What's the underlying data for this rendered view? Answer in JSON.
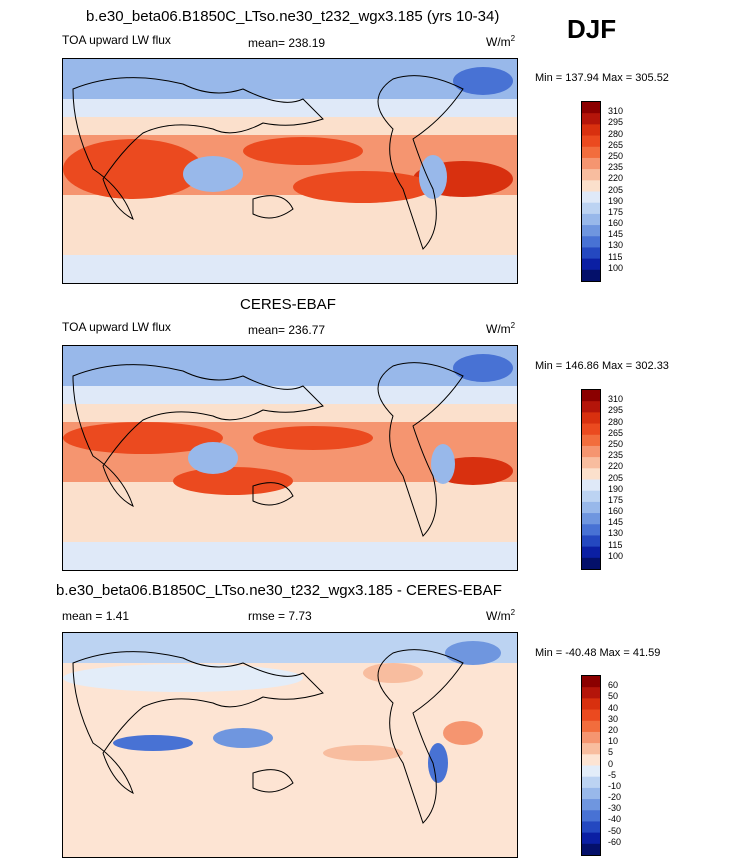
{
  "season": "DJF",
  "panels": [
    {
      "title": "b.e30_beta06.B1850C_LTso.ne30_t232_wgx3.185 (yrs 10-34)",
      "field": "TOA upward LW flux",
      "stat1": "mean= 238.19",
      "stat2": "",
      "units": "W/m",
      "units_sup": "2",
      "minmax": "Min = 137.94 Max = 305.52",
      "legend": [
        "310",
        "295",
        "280",
        "265",
        "250",
        "235",
        "220",
        "205",
        "190",
        "175",
        "160",
        "145",
        "130",
        "115",
        "100"
      ]
    },
    {
      "title": "CERES-EBAF",
      "field": "TOA upward LW flux",
      "stat1": "mean= 236.77",
      "stat2": "",
      "units": "W/m",
      "units_sup": "2",
      "minmax": "Min = 146.86 Max = 302.33",
      "legend": [
        "310",
        "295",
        "280",
        "265",
        "250",
        "235",
        "220",
        "205",
        "190",
        "175",
        "160",
        "145",
        "130",
        "115",
        "100"
      ]
    },
    {
      "title": "b.e30_beta06.B1850C_LTso.ne30_t232_wgx3.185 - CERES-EBAF",
      "field": "",
      "stat1": "mean =   1.41",
      "stat2": "rmse =   7.73",
      "units": "W/m",
      "units_sup": "2",
      "minmax": "Min = -40.48 Max =  41.59",
      "legend": [
        "60",
        "50",
        "40",
        "30",
        "20",
        "10",
        "5",
        "0",
        "-5",
        "-10",
        "-20",
        "-30",
        "-40",
        "-50",
        "-60"
      ]
    }
  ],
  "colors": {
    "abs_scale": [
      "#8b0000",
      "#b4150a",
      "#d8300f",
      "#eb4a1f",
      "#f26d3d",
      "#f59570",
      "#f8bd9f",
      "#fbe0cc",
      "#dfe9f8",
      "#bcd3f2",
      "#98b8ea",
      "#6f96df",
      "#4872d4",
      "#2448c0",
      "#0b1fa3",
      "#04106a"
    ],
    "diff_scale": [
      "#8b0000",
      "#b4150a",
      "#d8300f",
      "#eb4a1f",
      "#f26d3d",
      "#f59570",
      "#f8bd9f",
      "#fde4d3",
      "#e3edf9",
      "#bcd3f2",
      "#98b8ea",
      "#6f96df",
      "#4872d4",
      "#2448c0",
      "#0b1fa3",
      "#04106a"
    ]
  },
  "chart_data": [
    {
      "type": "heatmap",
      "title": "b.e30_beta06.B1850C_LTso.ne30_t232_wgx3.185 (yrs 10-34)",
      "field": "TOA upward LW flux",
      "units": "W/m2",
      "mean": 238.19,
      "min": 137.94,
      "max": 305.52,
      "levels": [
        100,
        115,
        130,
        145,
        160,
        175,
        190,
        205,
        220,
        235,
        250,
        265,
        280,
        295,
        310
      ]
    },
    {
      "type": "heatmap",
      "title": "CERES-EBAF",
      "field": "TOA upward LW flux",
      "units": "W/m2",
      "mean": 236.77,
      "min": 146.86,
      "max": 302.33,
      "levels": [
        100,
        115,
        130,
        145,
        160,
        175,
        190,
        205,
        220,
        235,
        250,
        265,
        280,
        295,
        310
      ]
    },
    {
      "type": "heatmap",
      "title": "b.e30_beta06.B1850C_LTso.ne30_t232_wgx3.185 - CERES-EBAF",
      "units": "W/m2",
      "mean": 1.41,
      "rmse": 7.73,
      "min": -40.48,
      "max": 41.59,
      "levels": [
        -60,
        -50,
        -40,
        -30,
        -20,
        -10,
        -5,
        0,
        5,
        10,
        20,
        30,
        40,
        50,
        60
      ]
    }
  ]
}
